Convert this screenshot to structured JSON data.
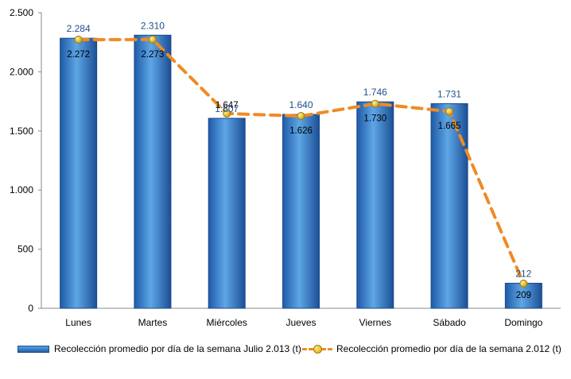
{
  "chart_data": {
    "type": "bar",
    "categories": [
      "Lunes",
      "Martes",
      "Miércoles",
      "Jueves",
      "Viernes",
      "Sábado",
      "Domingo"
    ],
    "series": [
      {
        "name": "Recolección promedio por día de la semana Julio 2.013 (t)",
        "kind": "bar",
        "values": [
          2284,
          2310,
          1607,
          1640,
          1746,
          1731,
          212
        ],
        "labels": [
          "2.284",
          "2.310",
          "1.607",
          "1.640",
          "1.746",
          "1.731",
          "212"
        ],
        "color": "#2e6fbf"
      },
      {
        "name": "Recolección promedio por día de la semana 2.012 (t)",
        "kind": "line",
        "values": [
          2272,
          2273,
          1647,
          1626,
          1730,
          1665,
          209
        ],
        "labels": [
          "2.272",
          "2.273",
          "1.647",
          "1.626",
          "1.730",
          "1.665",
          "209"
        ],
        "color": "#f08a24"
      }
    ],
    "ylim": [
      0,
      2500
    ],
    "yticks": [
      0,
      500,
      1000,
      1500,
      2000,
      2500
    ],
    "ytick_labels": [
      "0",
      "500",
      "1.000",
      "1.500",
      "2.000",
      "2.500"
    ],
    "grid": false,
    "legend_position": "bottom"
  }
}
